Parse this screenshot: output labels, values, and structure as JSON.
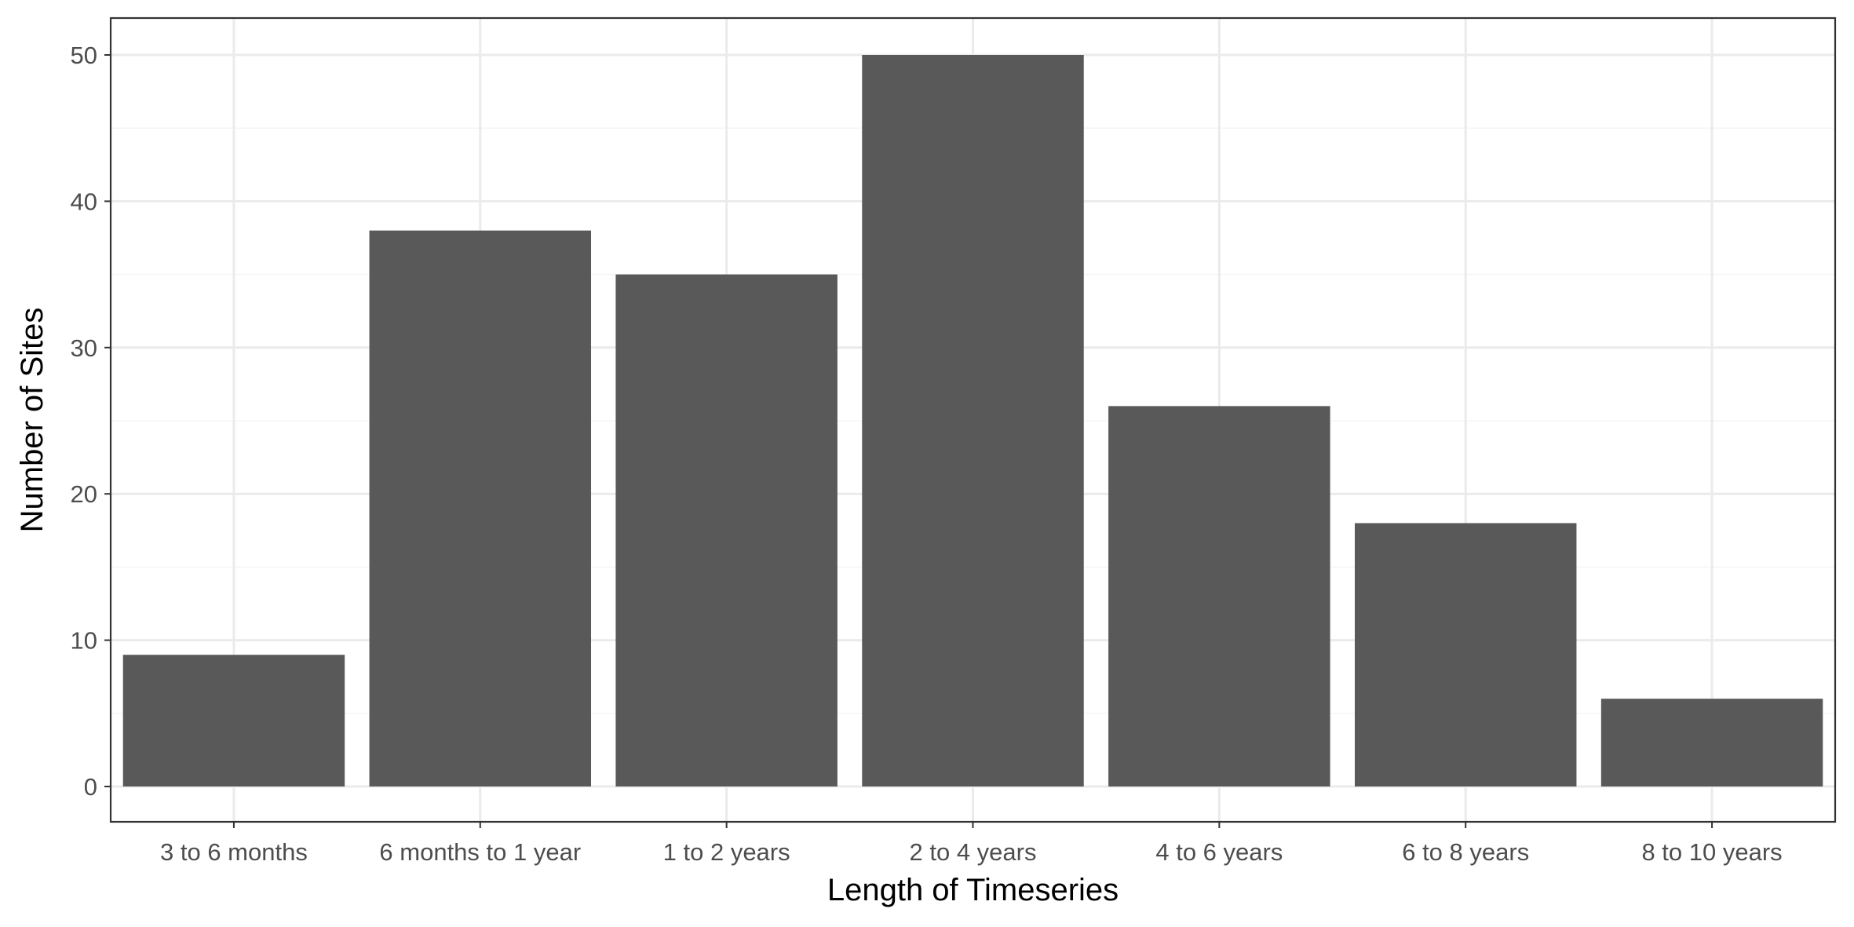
{
  "chart_data": {
    "type": "bar",
    "title": "",
    "xlabel": "Length of Timeseries",
    "ylabel": "Number of Sites",
    "categories": [
      "3 to 6 months",
      "6 months to 1 year",
      "1 to 2 years",
      "2 to 4 years",
      "4 to 6 years",
      "6 to 8 years",
      "8 to 10 years"
    ],
    "values": [
      9,
      38,
      35,
      50,
      26,
      18,
      6
    ],
    "ylim": [
      0,
      52.5
    ],
    "yticks": [
      0,
      10,
      20,
      30,
      40,
      50
    ],
    "grid": true,
    "legend": "none",
    "colors": {
      "bar": "#595959",
      "grid_major": "#ebebeb",
      "grid_minor": "#f5f5f5",
      "panel_border": "#333333",
      "tick_label": "#4d4d4d"
    }
  }
}
